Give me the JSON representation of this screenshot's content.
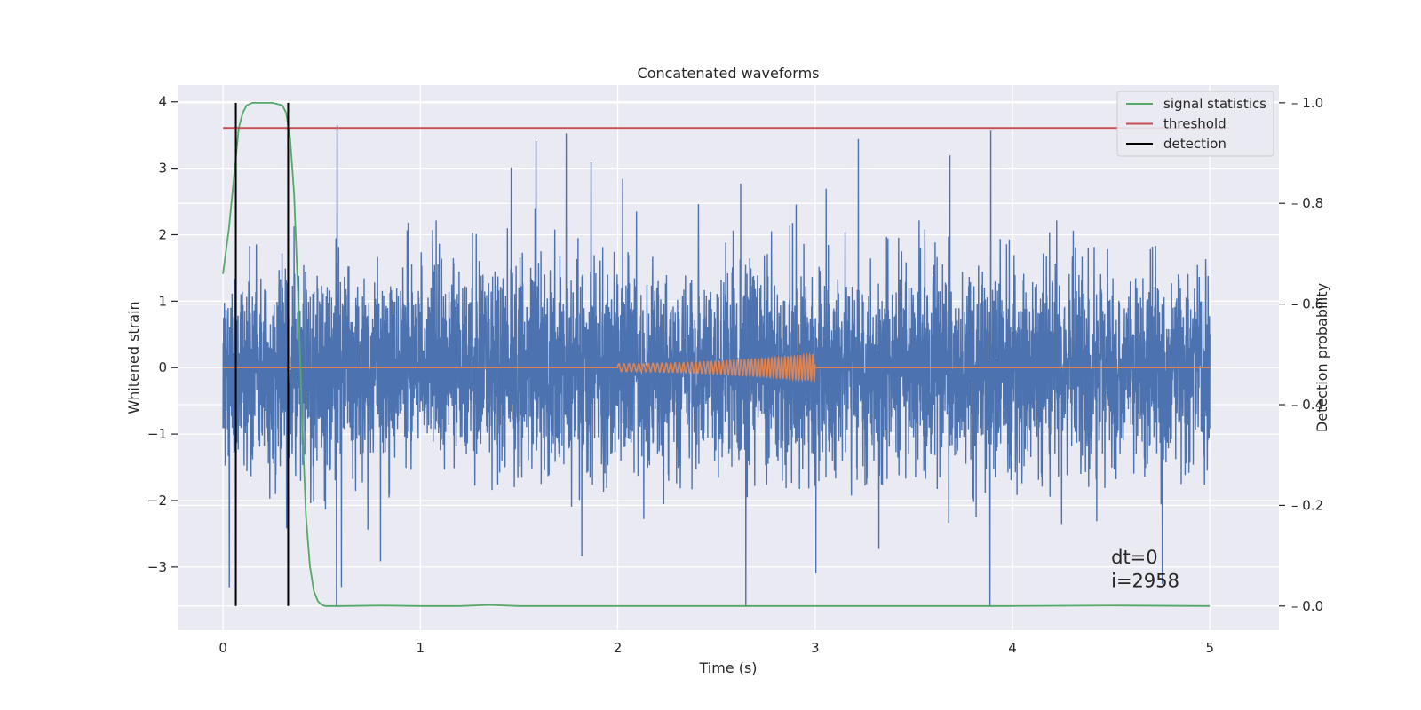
{
  "chart_data": {
    "type": "line",
    "title": "Concatenated waveforms",
    "xlabel": "Time (s)",
    "ylabel": "Whitened strain",
    "y2label": "Detection probability",
    "xlim": [
      -0.23,
      5.35
    ],
    "ylim": [
      -3.95,
      4.25
    ],
    "y2lim": [
      -0.048,
      1.035
    ],
    "xticks": [
      0,
      1,
      2,
      3,
      4,
      5
    ],
    "yticks": [
      -3,
      -2,
      -1,
      0,
      1,
      2,
      3,
      4
    ],
    "y2ticks": [
      0.0,
      0.2,
      0.4,
      0.6,
      0.8,
      1.0
    ],
    "grid": true,
    "legend_position": "top-right",
    "legend": [
      {
        "name": "signal statistics",
        "color": "#55a868"
      },
      {
        "name": "threshold",
        "color": "#c44e52"
      },
      {
        "name": "detection",
        "color": "#000000"
      }
    ],
    "series": [
      {
        "name": "whitened strain",
        "axis": "left",
        "color": "#4c72b0",
        "kind": "noise",
        "x_range": [
          0,
          5
        ],
        "sigma": 0.75
      },
      {
        "name": "injected waveform",
        "axis": "left",
        "color": "#dd8452",
        "kind": "chirp",
        "x_range": [
          2,
          3
        ],
        "amplitude_range": [
          0.06,
          0.2
        ]
      },
      {
        "name": "signal statistics",
        "axis": "right",
        "color": "#55a868",
        "x": [
          0,
          0.03,
          0.06,
          0.08,
          0.1,
          0.12,
          0.15,
          0.2,
          0.25,
          0.3,
          0.32,
          0.34,
          0.36,
          0.38,
          0.4,
          0.42,
          0.44,
          0.46,
          0.48,
          0.5,
          0.52,
          0.6,
          0.8,
          1.0,
          1.2,
          1.35,
          1.5,
          2.0,
          3.0,
          4.0,
          4.5,
          5.0
        ],
        "y": [
          0.66,
          0.75,
          0.87,
          0.95,
          0.98,
          0.995,
          1.0,
          1.0,
          1.0,
          0.995,
          0.98,
          0.93,
          0.82,
          0.62,
          0.38,
          0.18,
          0.08,
          0.03,
          0.01,
          0.002,
          0.0,
          0.0,
          0.001,
          0.0,
          0.0,
          0.002,
          0.0,
          0.0,
          0.0,
          0.0,
          0.001,
          0.0
        ]
      },
      {
        "name": "threshold",
        "axis": "right",
        "color": "#c44e52",
        "x": [
          0,
          5.1
        ],
        "y": [
          0.95,
          0.95
        ]
      },
      {
        "name": "detection",
        "axis": "right",
        "color": "#000000",
        "x": [
          0.065,
          0.33
        ],
        "y_range": [
          0.0,
          1.0
        ]
      }
    ],
    "annotations": [
      {
        "text": "dt=0",
        "x": 4.5,
        "y": -2.95
      },
      {
        "text": "i=2958",
        "x": 4.5,
        "y": -3.3
      }
    ]
  }
}
